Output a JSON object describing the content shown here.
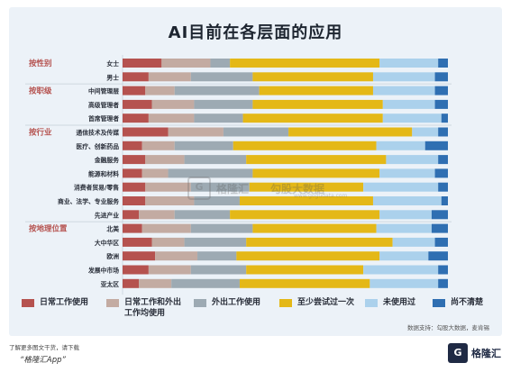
{
  "title": "AI目前在各层面的应用",
  "chart_data": {
    "type": "bar",
    "orientation": "horizontal",
    "stacked": true,
    "xlim": [
      0,
      100
    ],
    "x_ticks": [
      "0%",
      "10%",
      "20%",
      "30%",
      "40%",
      "50%",
      "60%",
      "70%",
      "80%",
      "90%",
      "100%"
    ],
    "groups": [
      {
        "label": "按性别",
        "categories": [
          "女士",
          "男士"
        ]
      },
      {
        "label": "按职级",
        "categories": [
          "中间管理层",
          "高级管理者",
          "首席管理者"
        ]
      },
      {
        "label": "按行业",
        "categories": [
          "通信技术及传媒",
          "医疗、创新药品",
          "金融服务",
          "能源和材料",
          "消费者贸易/零售",
          "商业、法学、专业服务",
          "先进产业"
        ]
      },
      {
        "label": "按地理位置",
        "categories": [
          "北美",
          "大中华区",
          "欧洲",
          "发展中市场",
          "亚太区"
        ]
      }
    ],
    "categories": [
      "女士",
      "男士",
      "中间管理层",
      "高级管理者",
      "首席管理者",
      "通信技术及传媒",
      "医疗、创新药品",
      "金融服务",
      "能源和材料",
      "消费者贸易/零售",
      "商业、法学、专业服务",
      "先进产业",
      "北美",
      "大中华区",
      "欧洲",
      "发展中市场",
      "亚太区"
    ],
    "series": [
      {
        "name": "日常工作使用",
        "color": "#b5524f",
        "values": [
          12,
          8,
          7,
          9,
          8,
          14,
          6,
          7,
          6,
          7,
          7,
          5,
          6,
          9,
          10,
          8,
          5
        ]
      },
      {
        "name": "日常工作和外出工作均使用",
        "color": "#c3aba2",
        "values": [
          15,
          13,
          9,
          13,
          14,
          17,
          10,
          12,
          8,
          14,
          15,
          11,
          15,
          10,
          13,
          13,
          10
        ]
      },
      {
        "name": "外出工作使用",
        "color": "#9daab3",
        "values": [
          6,
          19,
          26,
          18,
          15,
          20,
          18,
          19,
          26,
          18,
          14,
          17,
          19,
          19,
          12,
          17,
          21
        ]
      },
      {
        "name": "至少尝试过一次",
        "color": "#e4b817",
        "values": [
          46,
          37,
          35,
          40,
          43,
          38,
          44,
          43,
          39,
          35,
          41,
          46,
          38,
          45,
          44,
          36,
          40
        ]
      },
      {
        "name": "未使用过",
        "color": "#abd1ec",
        "values": [
          18,
          19,
          19,
          16,
          18,
          8,
          15,
          16,
          17,
          23,
          21,
          16,
          17,
          13,
          15,
          23,
          21
        ]
      },
      {
        "name": "尚不清楚",
        "color": "#2f6fb2",
        "values": [
          3,
          4,
          4,
          4,
          2,
          3,
          7,
          3,
          4,
          3,
          2,
          5,
          5,
          4,
          6,
          3,
          3
        ]
      }
    ]
  },
  "legend_items": [
    {
      "line1": "日常工作使用",
      "line2": ""
    },
    {
      "line1": "日常工作和外出",
      "line2": "工作均使用"
    },
    {
      "line1": "外出工作使用",
      "line2": ""
    },
    {
      "line1": "至少尝试过一次",
      "line2": ""
    },
    {
      "line1": "未使用过",
      "line2": ""
    },
    {
      "line1": "尚不清楚",
      "line2": ""
    }
  ],
  "source": "数据支持：勾股大数据，麦肯锡",
  "watermark": {
    "brand": "格隆汇",
    "name": "勾股大数据",
    "url": "www.gogudata.com"
  },
  "footer": {
    "note": "了解更多图文干货，请下载",
    "app": "“格隆汇App”",
    "brand": "格隆汇",
    "logo_letter": "G"
  }
}
